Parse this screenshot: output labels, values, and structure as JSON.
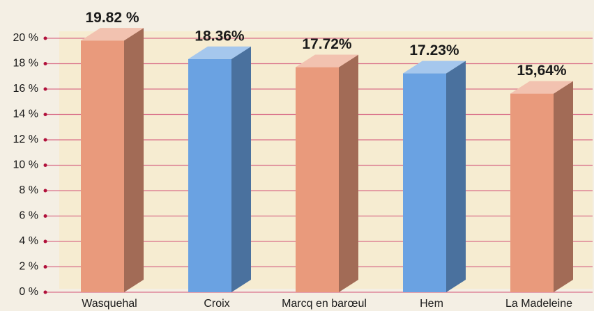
{
  "chart_data": {
    "type": "bar3d",
    "categories": [
      "Wasquehal",
      "Croix",
      "Marcq en barœul",
      "Hem",
      "La Madeleine"
    ],
    "values": [
      19.82,
      18.36,
      17.72,
      17.23,
      15.64
    ],
    "value_labels": [
      "19.82 %",
      "18.36%",
      "17.72%",
      "17.23%",
      "15,64%"
    ],
    "colors": [
      "#e99a7c",
      "#6aa2e2",
      "#e99a7c",
      "#6aa2e2",
      "#e99a7c"
    ],
    "ylim": [
      0,
      20
    ],
    "yticks": [
      {
        "value": 0,
        "label": "0 %"
      },
      {
        "value": 2,
        "label": "2 %"
      },
      {
        "value": 4,
        "label": "4 %"
      },
      {
        "value": 6,
        "label": "6 %"
      },
      {
        "value": 8,
        "label": "8 %"
      },
      {
        "value": 10,
        "label": "10 %"
      },
      {
        "value": 12,
        "label": "12 %"
      },
      {
        "value": 14,
        "label": "14 %"
      },
      {
        "value": 16,
        "label": "16 %"
      },
      {
        "value": 18,
        "label": "18 %"
      },
      {
        "value": 20,
        "label": "20 %"
      }
    ],
    "grid": true
  }
}
